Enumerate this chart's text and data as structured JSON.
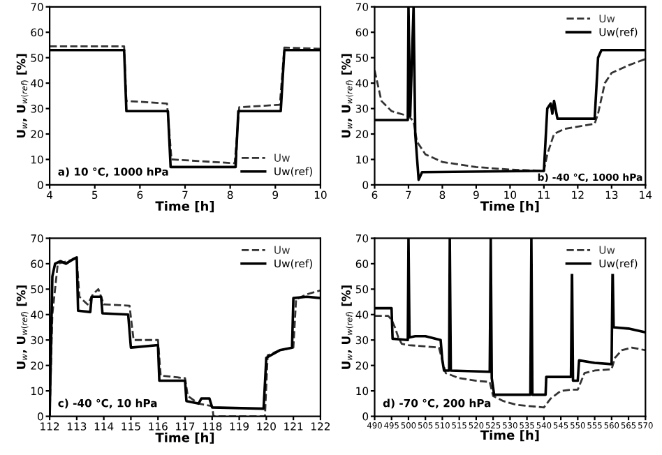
{
  "chart_data": [
    {
      "type": "line",
      "xlabel": "Time [h]",
      "ylabel": "U$_{w}$, U$_{w(ref)}$ [%]",
      "xlim": [
        4,
        10
      ],
      "xticks": [
        4,
        5,
        6,
        7,
        8,
        9,
        10
      ],
      "ylim": [
        0,
        70
      ],
      "yticks": [
        0,
        10,
        20,
        30,
        40,
        50,
        60,
        70
      ],
      "legend": "bottom right",
      "annotations": [
        "a) 10 °C, 1000 hPa"
      ],
      "series": [
        {
          "name": "Uw",
          "color": "#333333",
          "line_style": "dashed",
          "x": [
            4,
            5.65,
            5.7,
            6.6,
            6.7,
            8.1,
            8.2,
            9.1,
            9.2,
            10
          ],
          "values": [
            54.5,
            54.5,
            33,
            32,
            10,
            8.5,
            30.5,
            31.5,
            54,
            53.5
          ]
        },
        {
          "name": "Uw(ref)",
          "color": "#000000",
          "line_style": "solid",
          "x": [
            4,
            5.65,
            5.7,
            6.62,
            6.68,
            8.12,
            8.18,
            9.12,
            9.2,
            10
          ],
          "values": [
            53,
            53,
            29,
            29,
            7,
            7,
            29,
            29,
            53,
            53
          ]
        }
      ]
    },
    {
      "type": "line",
      "xlabel": "Time [h]",
      "ylabel": "U$_{w}$, U$_{w(ref)}$ [%]",
      "xlim": [
        6,
        14
      ],
      "xticks": [
        6,
        7,
        8,
        9,
        10,
        11,
        12,
        13,
        14
      ],
      "ylim": [
        0,
        70
      ],
      "yticks": [
        0,
        10,
        20,
        30,
        40,
        50,
        60,
        70
      ],
      "legend": "top right",
      "annotations": [
        "b) -40 °C, 1000 hPa"
      ],
      "series": [
        {
          "name": "Uw",
          "color": "#333333",
          "line_style": "dashed",
          "x": [
            6,
            6.2,
            6.5,
            7,
            7.15,
            7.25,
            7.5,
            8,
            9,
            10,
            11,
            11.1,
            11.3,
            11.6,
            12.5,
            12.6,
            12.8,
            13,
            13.5,
            14
          ],
          "values": [
            45,
            33,
            29,
            27,
            25,
            17,
            12,
            9,
            7,
            6,
            5.5,
            12,
            20,
            22,
            24,
            28,
            40,
            44,
            47,
            49.5
          ]
        },
        {
          "name": "Uw(ref)",
          "color": "#000000",
          "line_style": "solid",
          "x": [
            6,
            6.98,
            7.0,
            7.05,
            7.15,
            7.2,
            7.3,
            7.4,
            11,
            11.1,
            11.2,
            11.25,
            11.3,
            11.4,
            12.5,
            12.6,
            12.7,
            14
          ],
          "values": [
            25.5,
            25.5,
            70,
            27,
            70,
            20,
            2,
            5,
            5.5,
            30,
            32,
            28,
            33,
            26,
            26,
            50,
            53,
            53
          ]
        }
      ]
    },
    {
      "type": "line",
      "xlabel": "Time [h]",
      "ylabel": "U$_{w}$, U$_{w(ref)}$ [%]",
      "xlim": [
        112,
        122
      ],
      "xticks": [
        112,
        113,
        114,
        115,
        116,
        117,
        118,
        119,
        120,
        121,
        122
      ],
      "ylim": [
        0,
        70
      ],
      "yticks": [
        0,
        10,
        20,
        30,
        40,
        50,
        60,
        70
      ],
      "legend": "top right",
      "annotations": [
        "c) -40 °C, 10 hPa"
      ],
      "series": [
        {
          "name": "Uw",
          "color": "#333333",
          "line_style": "dashed",
          "x": [
            112,
            112.1,
            112.3,
            113,
            113.1,
            113.4,
            113.6,
            113.8,
            114,
            114.95,
            115.1,
            116,
            116.1,
            117,
            117.1,
            117.5,
            118,
            118.05,
            119.95,
            120.05,
            120.5,
            121,
            121.1,
            121.5,
            122
          ],
          "values": [
            0,
            40,
            60,
            62,
            47,
            44,
            48,
            50,
            44,
            43.5,
            30,
            30,
            16,
            15,
            8,
            5,
            4,
            0,
            0,
            24,
            26,
            27,
            46,
            48,
            49.5
          ]
        },
        {
          "name": "Uw(ref)",
          "color": "#000000",
          "line_style": "solid",
          "x": [
            112,
            112.1,
            112.2,
            112.4,
            112.6,
            112.9,
            113,
            113.05,
            113.5,
            113.55,
            113.9,
            113.95,
            114.9,
            115,
            116,
            116.05,
            117,
            117.05,
            117.5,
            117.6,
            117.9,
            118,
            119.9,
            120,
            120.5,
            120.95,
            121,
            121.5,
            122
          ],
          "values": [
            0,
            55,
            60,
            61,
            60,
            62,
            62.5,
            41.5,
            41,
            47,
            47,
            40.5,
            40,
            27,
            28,
            14,
            14,
            6,
            5,
            7,
            7,
            3.5,
            3,
            23,
            26,
            27,
            46.5,
            47,
            46.5
          ]
        }
      ]
    },
    {
      "type": "line",
      "xlabel": "Time [h]",
      "ylabel": "U$_{w}$, U$_{w(ref)}$ [%]",
      "xlim": [
        490,
        570
      ],
      "xticks": [
        490,
        495,
        500,
        505,
        510,
        515,
        520,
        525,
        530,
        535,
        540,
        545,
        550,
        555,
        560,
        565,
        570
      ],
      "ylim": [
        0,
        70
      ],
      "yticks": [
        0,
        10,
        20,
        30,
        40,
        50,
        60,
        70
      ],
      "legend": "top right",
      "annotations": [
        "d) -70 °C, 200 hPa"
      ],
      "series": [
        {
          "name": "Uw",
          "color": "#333333",
          "line_style": "dashed",
          "x": [
            490,
            494,
            495,
            496,
            497,
            498,
            500,
            505,
            509,
            510,
            511,
            515,
            520,
            524,
            525,
            528,
            532,
            540,
            542,
            545,
            548,
            550,
            552,
            555,
            560,
            561,
            563,
            566,
            570
          ],
          "values": [
            39.5,
            39.5,
            38,
            35,
            31,
            28.5,
            28,
            27.5,
            27,
            22,
            17,
            15,
            14,
            13.5,
            8,
            6,
            4.5,
            3.5,
            7,
            10,
            10.5,
            10.5,
            17,
            18,
            18.5,
            23,
            26,
            27,
            26
          ]
        },
        {
          "name": "Uw(ref)",
          "color": "#000000",
          "line_style": "solid",
          "x": [
            490,
            495,
            495.3,
            499.8,
            500,
            500.3,
            502,
            505,
            509.5,
            510,
            510.5,
            512,
            512.2,
            512.5,
            524,
            524.3,
            524.6,
            525.3,
            536,
            536.3,
            536.6,
            540.5,
            540.7,
            548,
            548.3,
            548.6,
            550,
            550.4,
            555,
            560,
            560.3,
            560.6,
            565,
            570
          ],
          "values": [
            42.5,
            42.5,
            30.5,
            30,
            70,
            31,
            31.5,
            31.5,
            30,
            22,
            18,
            18,
            70,
            18,
            17.5,
            70,
            15,
            8.5,
            8.5,
            70,
            8.5,
            8.5,
            15.5,
            15.5,
            60,
            14,
            14,
            22,
            21,
            20.5,
            60,
            35,
            34.5,
            33
          ]
        }
      ]
    }
  ]
}
